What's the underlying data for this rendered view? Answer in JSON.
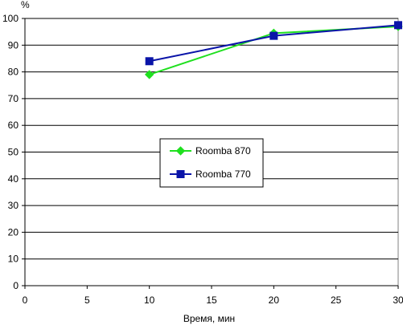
{
  "chart_data": {
    "type": "line",
    "title": "",
    "xlabel": "Время, мин",
    "ylabel": "%",
    "xlim": [
      0,
      30
    ],
    "ylim": [
      0,
      100
    ],
    "xticks": [
      0,
      5,
      10,
      15,
      20,
      25,
      30
    ],
    "yticks": [
      0,
      10,
      20,
      30,
      40,
      50,
      60,
      70,
      80,
      90,
      100
    ],
    "grid": "horizontal",
    "legend_position": "center",
    "series": [
      {
        "name": "Roomba 870",
        "color": "#1fe01f",
        "marker": "diamond",
        "x": [
          10,
          20,
          30
        ],
        "y": [
          79,
          94.5,
          97
        ]
      },
      {
        "name": "Roomba 770",
        "color": "#0a14a8",
        "marker": "square",
        "x": [
          10,
          20,
          30
        ],
        "y": [
          84,
          93.5,
          97.5
        ]
      }
    ]
  }
}
